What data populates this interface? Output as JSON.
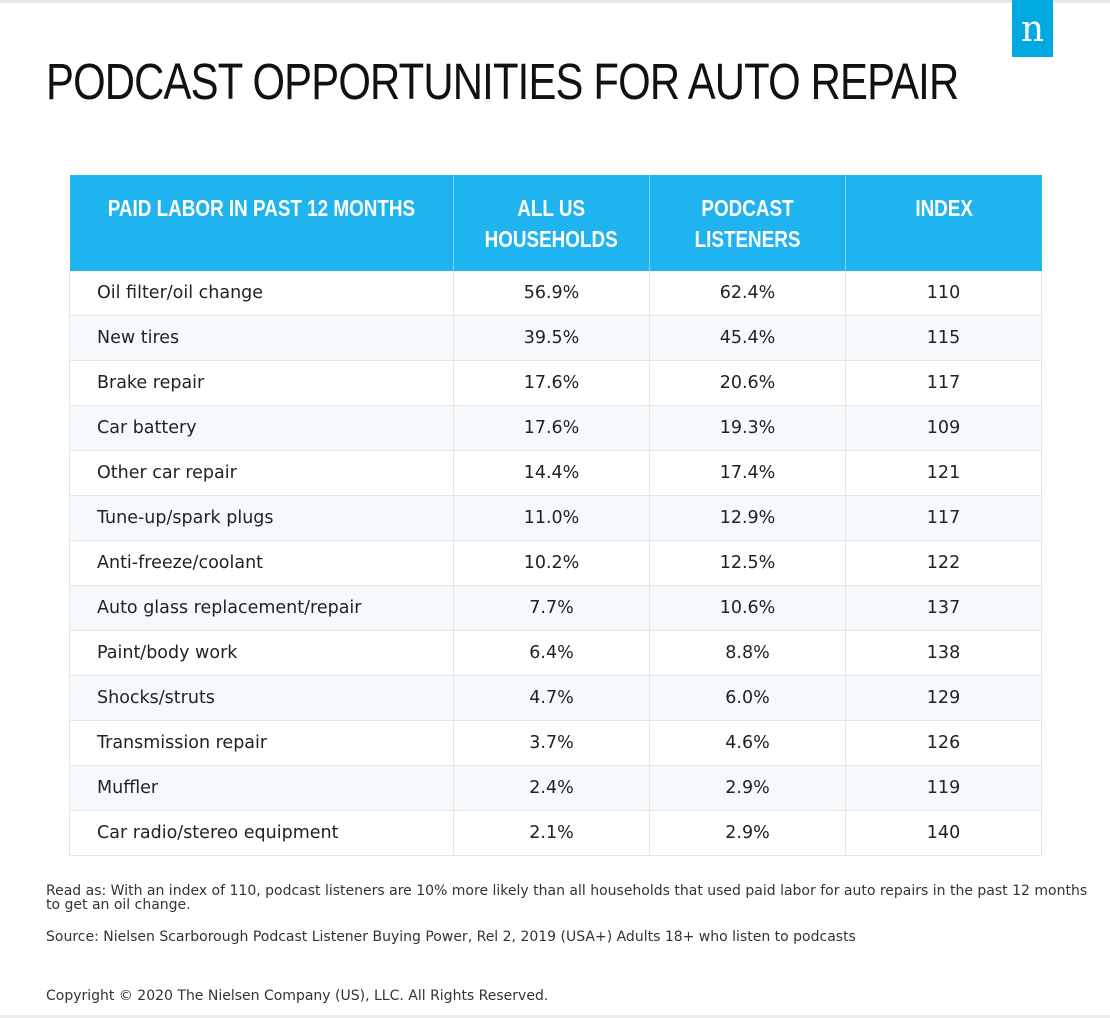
{
  "brand": {
    "logo_letter": "n",
    "accent": "#00a9e0",
    "header_bg": "#1fb3ef"
  },
  "title": "PODCAST OPPORTUNITIES FOR AUTO REPAIR",
  "chart_data": {
    "type": "table",
    "title": "PODCAST OPPORTUNITIES FOR AUTO REPAIR",
    "columns": [
      {
        "line1": "PAID LABOR IN PAST 12 MONTHS",
        "line2": ""
      },
      {
        "line1": "ALL US",
        "line2": "HOUSEHOLDS"
      },
      {
        "line1": "PODCAST",
        "line2": "LISTENERS"
      },
      {
        "line1": "INDEX",
        "line2": ""
      }
    ],
    "rows": [
      {
        "category": "Oil filter/oil change",
        "all_us_households": "56.9%",
        "podcast_listeners": "62.4%",
        "index": "110"
      },
      {
        "category": "New tires",
        "all_us_households": "39.5%",
        "podcast_listeners": "45.4%",
        "index": "115"
      },
      {
        "category": "Brake repair",
        "all_us_households": "17.6%",
        "podcast_listeners": "20.6%",
        "index": "117"
      },
      {
        "category": "Car battery",
        "all_us_households": "17.6%",
        "podcast_listeners": "19.3%",
        "index": "109"
      },
      {
        "category": "Other car repair",
        "all_us_households": "14.4%",
        "podcast_listeners": "17.4%",
        "index": "121"
      },
      {
        "category": "Tune-up/spark plugs",
        "all_us_households": "11.0%",
        "podcast_listeners": "12.9%",
        "index": "117"
      },
      {
        "category": "Anti-freeze/coolant",
        "all_us_households": "10.2%",
        "podcast_listeners": "12.5%",
        "index": "122"
      },
      {
        "category": "Auto glass replacement/repair",
        "all_us_households": "7.7%",
        "podcast_listeners": "10.6%",
        "index": "137"
      },
      {
        "category": "Paint/body work",
        "all_us_households": "6.4%",
        "podcast_listeners": "8.8%",
        "index": "138"
      },
      {
        "category": "Shocks/struts",
        "all_us_households": "4.7%",
        "podcast_listeners": "6.0%",
        "index": "129"
      },
      {
        "category": "Transmission repair",
        "all_us_households": "3.7%",
        "podcast_listeners": "4.6%",
        "index": "126"
      },
      {
        "category": "Muffler",
        "all_us_households": "2.4%",
        "podcast_listeners": "2.9%",
        "index": "119"
      },
      {
        "category": "Car radio/stereo equipment",
        "all_us_households": "2.1%",
        "podcast_listeners": "2.9%",
        "index": "140"
      }
    ]
  },
  "notes": {
    "read_as": "Read as: With an index of 110, podcast listeners are 10% more likely than all households that used paid labor for auto repairs in the past 12 months to get an oil change.",
    "source": "Source: Nielsen Scarborough Podcast Listener Buying Power, Rel 2, 2019 (USA+) Adults 18+ who listen to podcasts",
    "copyright": "Copyright © 2020 The Nielsen Company (US), LLC. All Rights Reserved."
  }
}
